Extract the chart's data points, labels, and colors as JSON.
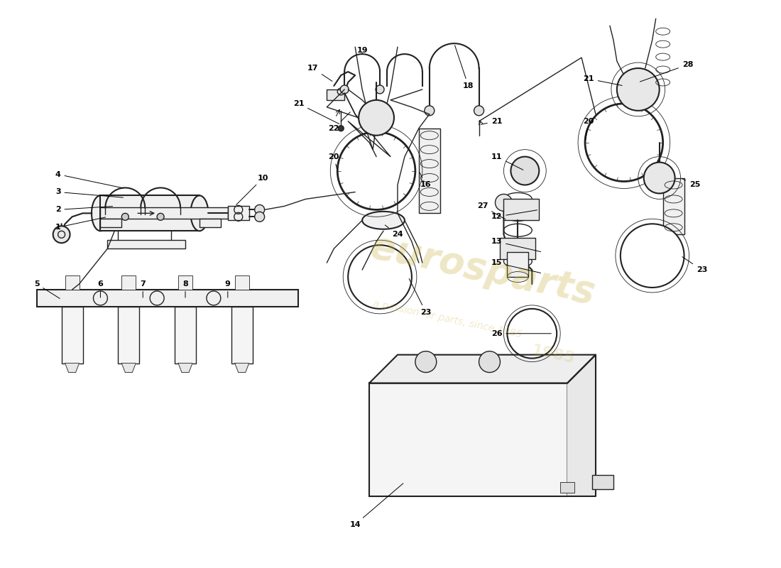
{
  "bg_color": "#ffffff",
  "line_color": "#222222",
  "label_color": "#000000",
  "wm_color1": "#c8b040",
  "wm_color2": "#d4b84a",
  "wm_text1": "eurosparts",
  "wm_text2": "a passion for parts, since 1985",
  "figw": 11.0,
  "figh": 8.0,
  "dpi": 100
}
